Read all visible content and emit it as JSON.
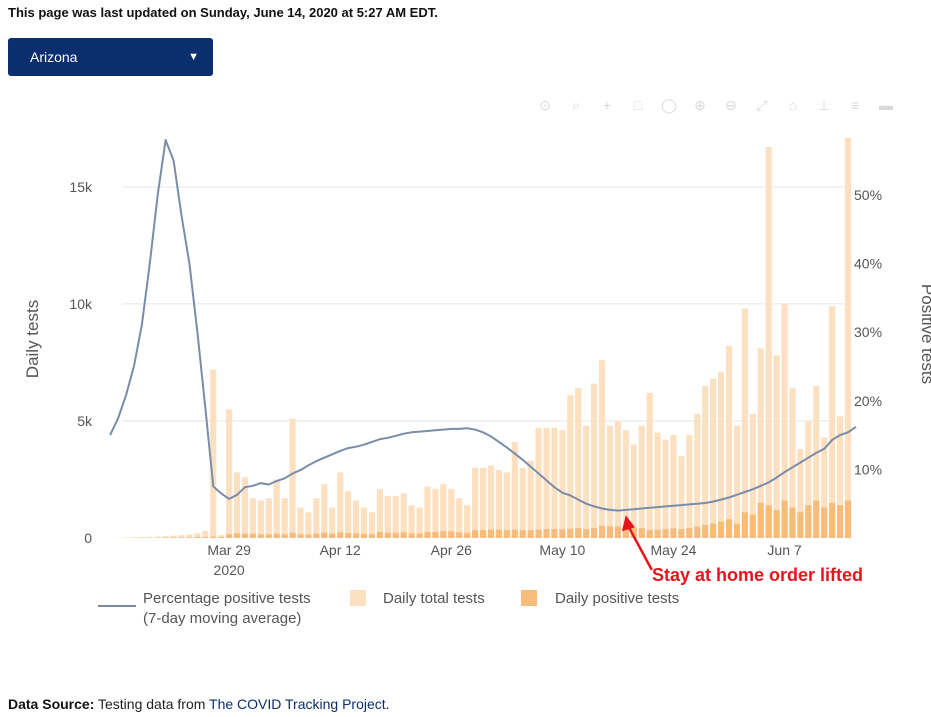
{
  "header": {
    "updated_text": "This page was last updated on Sunday, June 14, 2020 at 5:27 AM EDT."
  },
  "state_select": {
    "value": "Arizona",
    "arrow": "▼"
  },
  "modebar": [
    "camera-icon",
    "zoom-icon",
    "plus-icon",
    "box-select-icon",
    "lasso-icon",
    "zoom-in-icon",
    "zoom-out-icon",
    "autoscale-icon",
    "home-icon",
    "spike-icon",
    "compare-icon",
    "closest-icon"
  ],
  "source": {
    "label": "Data Source:",
    "text": "Testing data from",
    "link": "The COVID Tracking Project",
    "end": "."
  },
  "colors": {
    "total": "#fde0c0",
    "positive": "#f7bc7a",
    "line": "#7a8ca8",
    "annotation": "#e8141c"
  },
  "chart_data": {
    "type": "bar+line",
    "start_date": "2020-03-16",
    "title": "",
    "ylabel": "Daily tests",
    "y2label": "Positive tests",
    "ylim": [
      0,
      17000
    ],
    "y2lim": [
      0,
      58
    ],
    "yticks": [
      0,
      5000,
      10000,
      15000
    ],
    "ytick_labels": [
      "0",
      "5k",
      "10k",
      "15k"
    ],
    "y2ticks": [
      10,
      20,
      30,
      40,
      50
    ],
    "y2tick_labels": [
      "10%",
      "20%",
      "30%",
      "40%",
      "50%"
    ],
    "xticks": [
      {
        "day": 13,
        "label": "Mar 29",
        "sub": "2020"
      },
      {
        "day": 27,
        "label": "Apr 12"
      },
      {
        "day": 41,
        "label": "Apr 26"
      },
      {
        "day": 55,
        "label": "May 10"
      },
      {
        "day": 69,
        "label": "May 24"
      },
      {
        "day": 83,
        "label": "Jun 7"
      }
    ],
    "series": [
      {
        "name": "Daily total tests",
        "values": [
          20,
          30,
          40,
          50,
          60,
          80,
          100,
          120,
          150,
          200,
          300,
          7200,
          120,
          5500,
          2800,
          2600,
          1700,
          1600,
          1700,
          2500,
          1700,
          5100,
          1300,
          1100,
          1700,
          2300,
          1300,
          2800,
          2000,
          1600,
          1300,
          1100,
          2100,
          1800,
          1800,
          1900,
          1400,
          1300,
          2200,
          2100,
          2300,
          2100,
          1700,
          1400,
          3000,
          3000,
          3100,
          2900,
          2800,
          4100,
          3000,
          3300,
          4700,
          4700,
          4700,
          4600,
          6100,
          6400,
          4800,
          6600,
          7600,
          4800,
          5000,
          4600,
          4000,
          4800,
          6200,
          4500,
          4200,
          4400,
          3500,
          4400,
          5300,
          6500,
          6800,
          7100,
          8200,
          4800,
          9800,
          5300,
          8100,
          16700,
          7800,
          10000,
          6400,
          3800,
          5000,
          6500,
          4300,
          9900,
          5200,
          17100
        ]
      },
      {
        "name": "Daily positive tests",
        "values": [
          5,
          8,
          10,
          12,
          15,
          20,
          25,
          30,
          35,
          40,
          40,
          60,
          40,
          160,
          200,
          180,
          180,
          160,
          160,
          180,
          160,
          230,
          160,
          150,
          190,
          230,
          180,
          240,
          210,
          200,
          170,
          160,
          250,
          230,
          220,
          240,
          200,
          190,
          260,
          260,
          290,
          280,
          240,
          220,
          330,
          340,
          350,
          350,
          340,
          360,
          330,
          340,
          360,
          380,
          380,
          370,
          400,
          420,
          380,
          430,
          520,
          500,
          490,
          480,
          450,
          420,
          350,
          360,
          380,
          410,
          380,
          430,
          480,
          560,
          620,
          700,
          800,
          600,
          1100,
          1000,
          1500,
          1400,
          1200,
          1600,
          1300,
          1100,
          1400,
          1600,
          1300,
          1500,
          1400,
          1600
        ]
      },
      {
        "name": "Percentage positive tests (7-day moving average)",
        "values": [
          null,
          null,
          null,
          null,
          null,
          null,
          null,
          null,
          null,
          null,
          null,
          null,
          null,
          null,
          null,
          null,
          null,
          null,
          null,
          null,
          null,
          null,
          null,
          null,
          null,
          null,
          null,
          null,
          null,
          null,
          null,
          null,
          null,
          null,
          null,
          null,
          null,
          null,
          null,
          null,
          null,
          null,
          null,
          null,
          null,
          null,
          null,
          null,
          null,
          null,
          null,
          null,
          null,
          null,
          null,
          null,
          null,
          null,
          null,
          null,
          null,
          null,
          null,
          null,
          null,
          null,
          null,
          null,
          null,
          null,
          null,
          null,
          null,
          null,
          null,
          null,
          null,
          null,
          null,
          null,
          null,
          null,
          null,
          null,
          null,
          null,
          null,
          null,
          null,
          null,
          null,
          null
        ]
      }
    ],
    "line_points": [
      [
        -2,
        15.0
      ],
      [
        -1,
        17.4
      ],
      [
        0,
        20.8
      ],
      [
        1,
        25.0
      ],
      [
        2,
        31.0
      ],
      [
        3,
        40.0
      ],
      [
        4,
        50.0
      ],
      [
        5,
        58.0
      ],
      [
        6,
        55.0
      ],
      [
        7,
        47.0
      ],
      [
        8,
        40.0
      ],
      [
        9,
        30.0
      ],
      [
        10,
        19.0
      ],
      [
        11,
        7.5
      ],
      [
        12,
        6.5
      ],
      [
        13,
        5.7
      ],
      [
        14,
        6.3
      ],
      [
        15,
        7.4
      ],
      [
        16,
        7.6
      ],
      [
        17,
        8.0
      ],
      [
        18,
        7.8
      ],
      [
        19,
        8.3
      ],
      [
        20,
        8.7
      ],
      [
        21,
        9.4
      ],
      [
        22,
        9.9
      ],
      [
        23,
        10.6
      ],
      [
        24,
        11.2
      ],
      [
        25,
        11.7
      ],
      [
        26,
        12.2
      ],
      [
        27,
        12.7
      ],
      [
        28,
        13.1
      ],
      [
        29,
        13.3
      ],
      [
        30,
        13.6
      ],
      [
        31,
        14.0
      ],
      [
        32,
        14.4
      ],
      [
        33,
        14.6
      ],
      [
        34,
        14.9
      ],
      [
        35,
        15.2
      ],
      [
        36,
        15.4
      ],
      [
        37,
        15.5
      ],
      [
        38,
        15.6
      ],
      [
        39,
        15.7
      ],
      [
        40,
        15.8
      ],
      [
        41,
        15.9
      ],
      [
        42,
        15.9
      ],
      [
        43,
        16.0
      ],
      [
        44,
        15.8
      ],
      [
        45,
        15.4
      ],
      [
        46,
        14.8
      ],
      [
        47,
        14.0
      ],
      [
        48,
        13.2
      ],
      [
        49,
        12.3
      ],
      [
        50,
        11.4
      ],
      [
        51,
        10.4
      ],
      [
        52,
        9.4
      ],
      [
        53,
        8.4
      ],
      [
        54,
        7.4
      ],
      [
        55,
        6.6
      ],
      [
        56,
        6.2
      ],
      [
        57,
        5.6
      ],
      [
        58,
        5.0
      ],
      [
        59,
        4.6
      ],
      [
        60,
        4.3
      ],
      [
        61,
        4.1
      ],
      [
        62,
        4.0
      ],
      [
        63,
        4.1
      ],
      [
        64,
        4.2
      ],
      [
        65,
        4.3
      ],
      [
        66,
        4.4
      ],
      [
        67,
        4.5
      ],
      [
        68,
        4.6
      ],
      [
        69,
        4.7
      ],
      [
        70,
        4.8
      ],
      [
        71,
        4.9
      ],
      [
        72,
        5.0
      ],
      [
        73,
        5.1
      ],
      [
        74,
        5.3
      ],
      [
        75,
        5.6
      ],
      [
        76,
        5.9
      ],
      [
        77,
        6.3
      ],
      [
        78,
        6.7
      ],
      [
        79,
        7.1
      ],
      [
        80,
        7.6
      ],
      [
        81,
        8.1
      ],
      [
        82,
        8.8
      ],
      [
        83,
        9.6
      ],
      [
        84,
        10.3
      ],
      [
        85,
        11.0
      ],
      [
        86,
        11.7
      ],
      [
        87,
        12.4
      ],
      [
        88,
        13.0
      ],
      [
        89,
        14.3
      ],
      [
        90,
        15.0
      ],
      [
        91,
        15.4
      ],
      [
        92,
        16.2
      ]
    ],
    "legend": [
      {
        "name": "Percentage positive tests",
        "sub": "(7-day moving average)",
        "kind": "line"
      },
      {
        "name": "Daily total tests",
        "kind": "total"
      },
      {
        "name": "Daily positive tests",
        "kind": "positive"
      }
    ],
    "annotation": {
      "text": "Stay at home order lifted",
      "day": 63
    }
  }
}
